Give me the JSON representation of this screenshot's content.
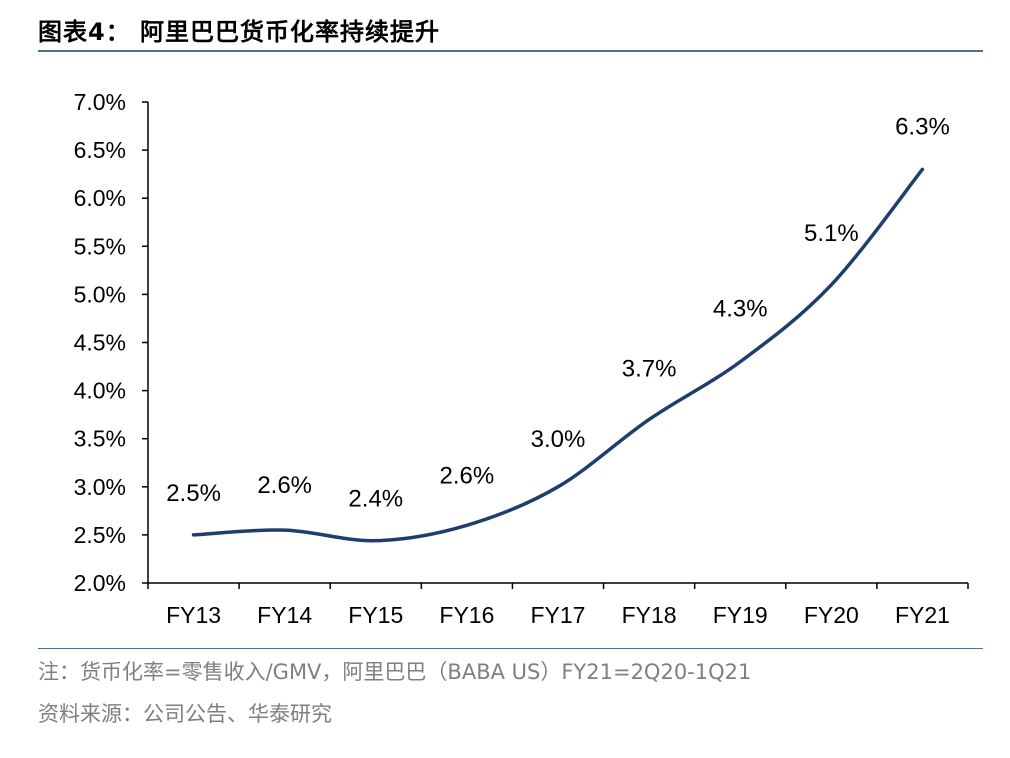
{
  "title": "图表4：  阿里巴巴货币化率持续提升",
  "note": "注：货币化率=零售收入/GMV，阿里巴巴（BABA US）FY21=2Q20-1Q21",
  "source": "资料来源：公司公告、华泰研究",
  "colors": {
    "line": "#1f3d6e",
    "rule": "#4f6f95",
    "footnote": "#7f7f7f"
  },
  "chart_data": {
    "type": "line",
    "title": "阿里巴巴货币化率持续提升",
    "xlabel": "",
    "ylabel": "",
    "categories": [
      "FY13",
      "FY14",
      "FY15",
      "FY16",
      "FY17",
      "FY18",
      "FY19",
      "FY20",
      "FY21"
    ],
    "values": [
      2.5,
      2.55,
      2.44,
      2.6,
      3.0,
      3.7,
      4.3,
      5.1,
      6.3
    ],
    "data_labels": [
      "2.5%",
      "2.6%",
      "2.4%",
      "2.6%",
      "3.0%",
      "3.7%",
      "4.3%",
      "5.1%",
      "6.3%"
    ],
    "ylim": [
      2.0,
      7.0
    ],
    "yticks": [
      2.0,
      2.5,
      3.0,
      3.5,
      4.0,
      4.5,
      5.0,
      5.5,
      6.0,
      6.5,
      7.0
    ],
    "ytick_labels": [
      "2.0%",
      "2.5%",
      "3.0%",
      "3.5%",
      "4.0%",
      "4.5%",
      "5.0%",
      "5.5%",
      "6.0%",
      "6.5%",
      "7.0%"
    ],
    "smooth": true,
    "grid": false,
    "legend": "none"
  }
}
